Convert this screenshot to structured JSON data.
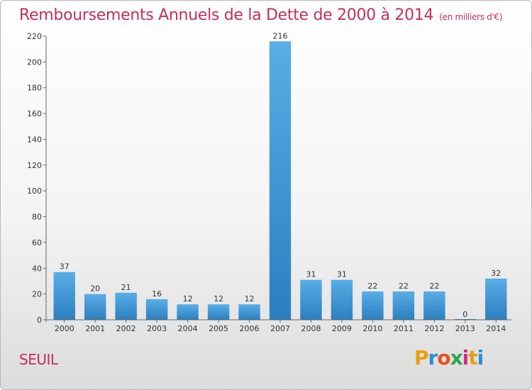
{
  "header": {
    "title": "Remboursements Annuels de la Dette de 2000 à 2014",
    "unit": "(en milliers d'€)"
  },
  "footer": {
    "commune": "SEUIL",
    "logo": "Proxiti"
  },
  "colors": {
    "title": "#c0305a",
    "bar_light": "#5aaee6",
    "bar_dark": "#2a7fbf"
  },
  "chart_data": {
    "type": "bar",
    "title": "Remboursements Annuels de la Dette de 2000 à 2014",
    "subtitle": "(en milliers d'€)",
    "xlabel": "",
    "ylabel": "",
    "categories": [
      "2000",
      "2001",
      "2002",
      "2003",
      "2004",
      "2005",
      "2006",
      "2007",
      "2008",
      "2009",
      "2010",
      "2011",
      "2012",
      "2013",
      "2014"
    ],
    "values": [
      37,
      20,
      21,
      16,
      12,
      12,
      12,
      216,
      31,
      31,
      22,
      22,
      22,
      0,
      32
    ],
    "ylim": [
      0,
      220
    ],
    "yticks": [
      0,
      20,
      40,
      60,
      80,
      100,
      120,
      140,
      160,
      180,
      200,
      220
    ],
    "grid": false,
    "legend": "none"
  }
}
